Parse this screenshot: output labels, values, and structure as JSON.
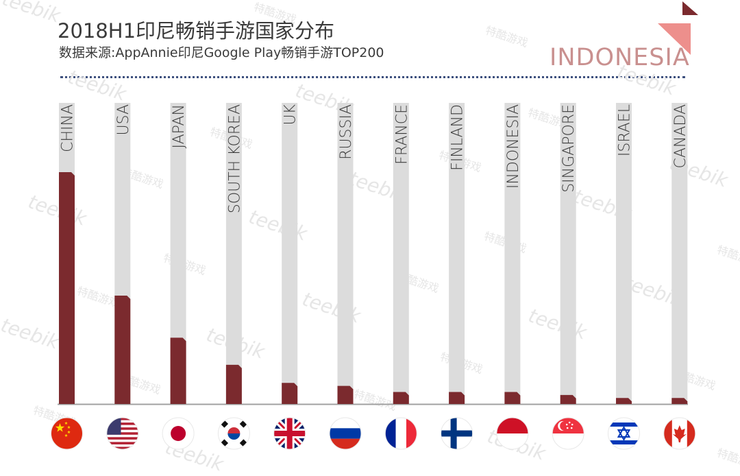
{
  "header": {
    "title": "2018H1印尼畅销手游国家分布",
    "subtitle": "数据来源:AppAnnie印尼Google Play畅销手游TOP200",
    "badge": "INDONESIA"
  },
  "colors": {
    "bar": "#7b2a2e",
    "track": "#dcdcdc",
    "accent": "#ed8f8c",
    "accent_dark": "#7b2a2e",
    "text": "#3a3a3a",
    "dotted_rule": "#3d4f7d"
  },
  "watermarks": [
    "teebik",
    "特酷游戏"
  ],
  "chart_data": {
    "type": "bar",
    "categories": [
      "CHINA",
      "USA",
      "JAPAN",
      "SOUTH KOREA",
      "UK",
      "RUSSIA",
      "FRANCE",
      "FINLAND",
      "INDONESIA",
      "SINGAPORE",
      "ISRAEL",
      "CANADA"
    ],
    "values": [
      77,
      36,
      22,
      13,
      7,
      6,
      4,
      4,
      4,
      3,
      2,
      2
    ],
    "flags": [
      "flag-china-icon",
      "flag-usa-icon",
      "flag-japan-icon",
      "flag-south-korea-icon",
      "flag-uk-icon",
      "flag-russia-icon",
      "flag-france-icon",
      "flag-finland-icon",
      "flag-indonesia-icon",
      "flag-singapore-icon",
      "flag-israel-icon",
      "flag-canada-icon"
    ],
    "ylim": [
      0,
      100
    ],
    "xlabel": "",
    "ylabel": "",
    "grid": false,
    "legend": "none"
  }
}
